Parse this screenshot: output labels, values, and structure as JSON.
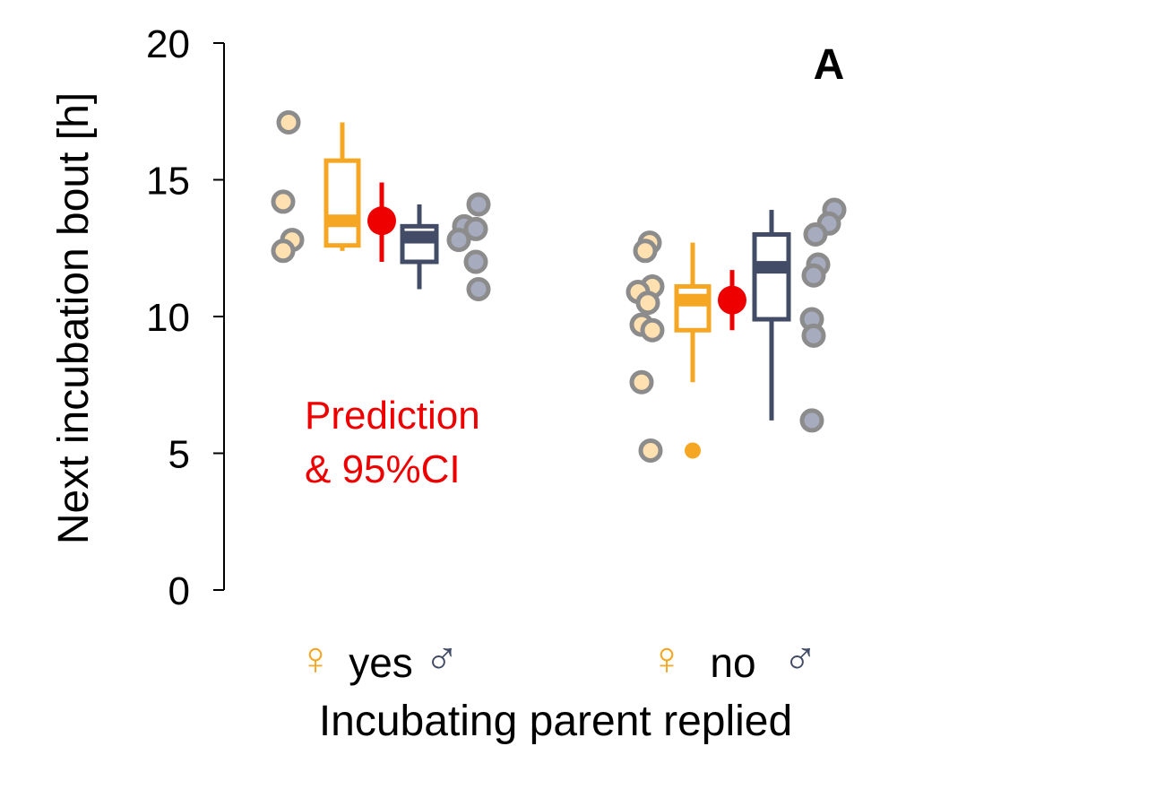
{
  "chart_data": {
    "type": "box",
    "panel_label": "A",
    "ylabel": "Next incubation bout [h]",
    "xlabel": "Incubating parent replied",
    "ylim": [
      0,
      20
    ],
    "yticks": [
      "0",
      "5",
      "10",
      "15",
      "20"
    ],
    "yticks_values": [
      0,
      5,
      10,
      15,
      20
    ],
    "groups": [
      {
        "label": "yes",
        "female_symbol": "♀",
        "male_symbol": "♂",
        "female": {
          "points": [
            17.1,
            14.2,
            12.8,
            12.4
          ],
          "box": {
            "whisker_low": 12.4,
            "q1": 12.6,
            "median": 13.5,
            "q3": 15.7,
            "whisker_high": 17.1
          },
          "outliers": []
        },
        "prediction": {
          "value": 13.5,
          "ci_low": 12.0,
          "ci_high": 14.9
        },
        "male": {
          "points": [
            14.1,
            13.3,
            13.2,
            12.8,
            12.0,
            11.0
          ],
          "box": {
            "whisker_low": 11.0,
            "q1": 12.0,
            "median": 12.9,
            "q3": 13.3,
            "whisker_high": 14.1
          },
          "outliers": []
        }
      },
      {
        "label": "no",
        "female_symbol": "♀",
        "male_symbol": "♂",
        "female": {
          "points": [
            12.7,
            12.4,
            11.1,
            10.9,
            10.5,
            9.7,
            9.5,
            7.6,
            5.1
          ],
          "box": {
            "whisker_low": 7.6,
            "q1": 9.5,
            "median": 10.6,
            "q3": 11.1,
            "whisker_high": 12.7
          },
          "outliers": [
            5.1
          ]
        },
        "prediction": {
          "value": 10.6,
          "ci_low": 9.5,
          "ci_high": 11.7
        },
        "male": {
          "points": [
            13.9,
            13.4,
            13.0,
            11.9,
            11.5,
            9.9,
            9.3,
            6.2
          ],
          "box": {
            "whisker_low": 6.2,
            "q1": 9.9,
            "median": 11.8,
            "q3": 13.0,
            "whisker_high": 13.9
          },
          "outliers": []
        }
      }
    ],
    "annotation": {
      "line1": "Prediction",
      "line2": "& 95%CI"
    },
    "colors": {
      "female": "#F5A623",
      "female_point": "#FFE0B0",
      "male": "#434C67",
      "male_point": "#A7ABBE",
      "point_edge": "#8C8C8C",
      "prediction": "#EE0000",
      "axis": "#000000"
    }
  }
}
